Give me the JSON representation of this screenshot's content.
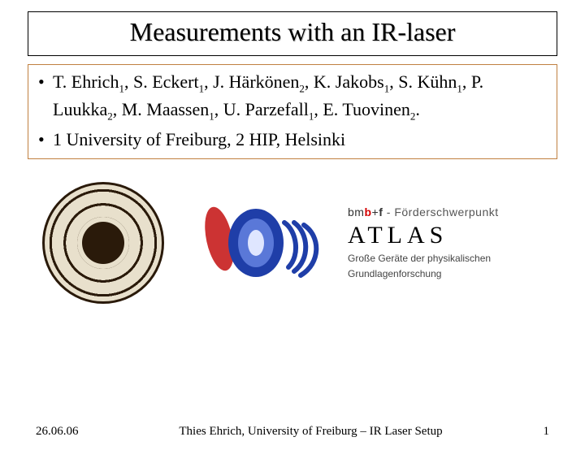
{
  "title": "Measurements with an IR-laser",
  "authors_html": "T. Ehrich<sub>1</sub>, S. Eckert<sub>1</sub>, J. Härkönen<sub>2</sub>, K. Jakobs<sub>1</sub>, S. Kühn<sub>1</sub>, P. Luukka<sub>2</sub>, M. Maassen<sub>1</sub>, U. Parzefall<sub>1</sub>, E. Tuovinen<sub>2</sub>.",
  "affiliations": "1 University of Freiburg, 2 HIP, Helsinki",
  "logos": {
    "seal_name": "university-of-freiburg-seal",
    "cip_name": "cip-logo",
    "atlas_top_bm": "bm",
    "atlas_top_b": "b",
    "atlas_top_plus": "+",
    "atlas_top_f": "f",
    "atlas_top_tail": " - Förderschwerpunkt",
    "atlas_main": "ATLAS",
    "atlas_sub1": "Große Geräte der physikalischen",
    "atlas_sub2": "Grundlagenforschung"
  },
  "footer": {
    "date": "26.06.06",
    "center": "Thies Ehrich, University of Freiburg – IR Laser Setup",
    "page": "1"
  },
  "colors": {
    "title_border": "#000000",
    "authors_border": "#c08040",
    "cip_red": "#cc3333",
    "cip_blue": "#1f3ea8",
    "cip_blue_light": "#5a78d8"
  }
}
